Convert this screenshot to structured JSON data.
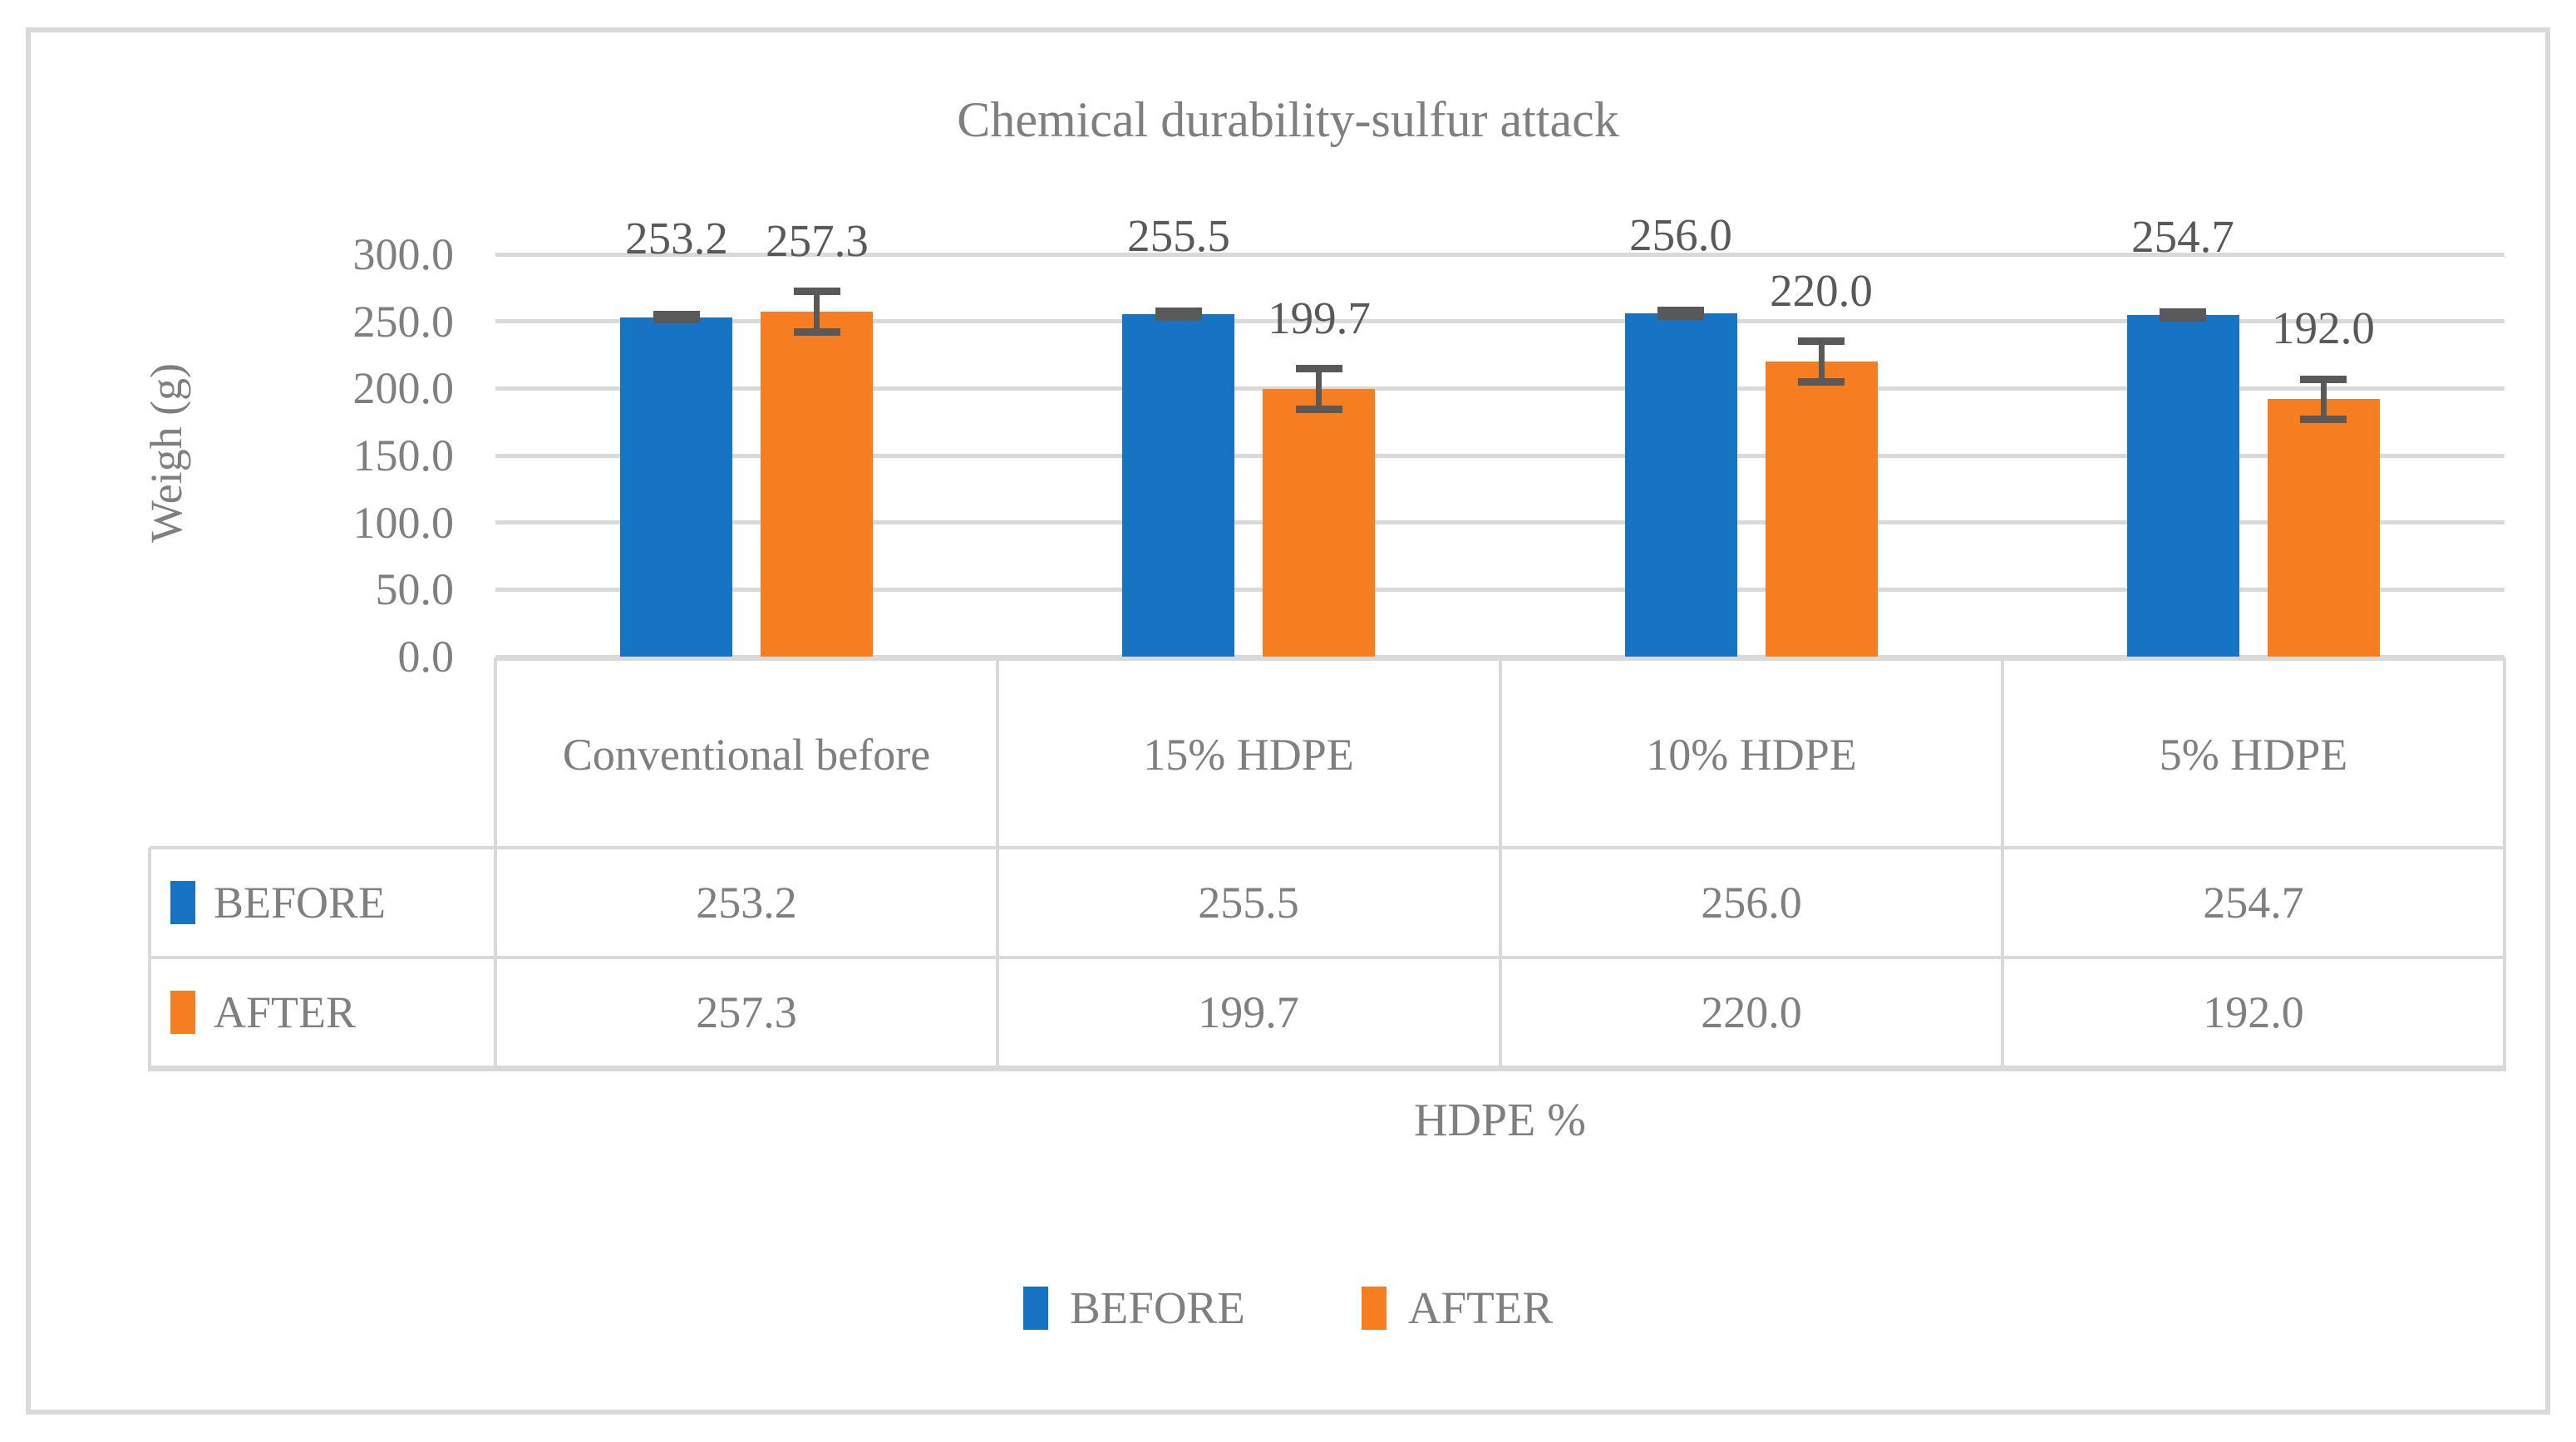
{
  "title": "Chemical durability-sulfur attack",
  "y_axis": {
    "label": "Weigh (g)",
    "tick_labels": [
      "300.0",
      "250.0",
      "200.0",
      "150.0",
      "100.0",
      "50.0",
      "0.0"
    ]
  },
  "x_axis": {
    "label": "HDPE %"
  },
  "legend": {
    "items": [
      "BEFORE",
      "AFTER"
    ]
  },
  "colors": {
    "before": "#1773C4",
    "after": "#F67D20",
    "grid": "#D9D9D9",
    "text": "#7F7F7F",
    "data_label": "#595959",
    "error_bar": "#595959"
  },
  "chart_data": {
    "type": "bar",
    "title": "Chemical durability-sulfur attack",
    "xlabel": "HDPE %",
    "ylabel": "Weigh (g)",
    "ylim": [
      0,
      300
    ],
    "ytick_interval": 50,
    "grid": true,
    "legend_position": "bottom",
    "categories": [
      "Conventional before",
      "15% HDPE",
      "10% HDPE",
      "5% HDPE"
    ],
    "series": [
      {
        "name": "BEFORE",
        "color": "#1773C4",
        "values": [
          253.2,
          255.5,
          256.0,
          254.7
        ],
        "error_bar": 2
      },
      {
        "name": "AFTER",
        "color": "#F67D20",
        "values": [
          257.3,
          199.7,
          220.0,
          192.0
        ],
        "error_bar": 15
      }
    ],
    "data_labels": {
      "BEFORE": [
        "253.2",
        "255.5",
        "256.0",
        "254.7"
      ],
      "AFTER": [
        "257.3",
        "199.7",
        "220.0",
        "192.0"
      ]
    },
    "data_table": {
      "row_headers": [
        "BEFORE",
        "AFTER"
      ],
      "column_headers": [
        "Conventional before",
        "15% HDPE",
        "10% HDPE",
        "5% HDPE"
      ],
      "rows": [
        [
          "253.2",
          "255.5",
          "256.0",
          "254.7"
        ],
        [
          "257.3",
          "199.7",
          "220.0",
          "192.0"
        ]
      ]
    }
  }
}
